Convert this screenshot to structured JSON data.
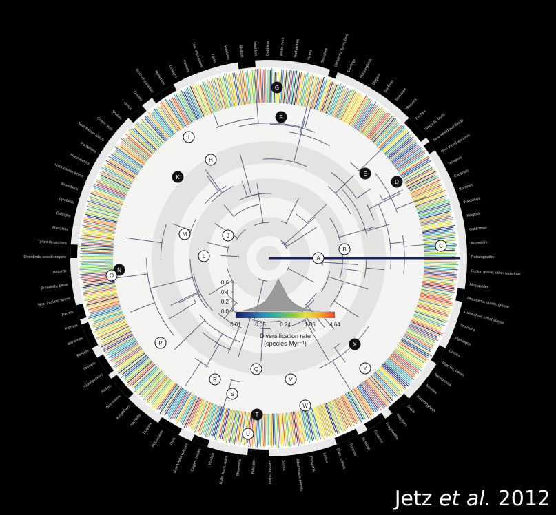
{
  "caption": {
    "author": "Jetz",
    "etal": "et al.",
    "year": "2012"
  },
  "inset": {
    "title_line1": "Diversification rate",
    "title_line2": "(species Myr⁻¹)",
    "yticks": [
      "0.6",
      "0.4",
      "0.2",
      "0.0"
    ],
    "xticks": [
      "0.01",
      "0.05",
      "0.24",
      "1.05",
      "4.64"
    ],
    "colormap": [
      "#1a1f63",
      "#2a4f9a",
      "#2f8fb6",
      "#3fb59a",
      "#8cc63f",
      "#e8e23a",
      "#f7a32a",
      "#e8412a"
    ]
  },
  "clade_markers": [
    {
      "letter": "A",
      "style": "light"
    },
    {
      "letter": "B",
      "style": "light"
    },
    {
      "letter": "C",
      "style": "light"
    },
    {
      "letter": "D",
      "style": "dark"
    },
    {
      "letter": "E",
      "style": "dark"
    },
    {
      "letter": "F",
      "style": "dark"
    },
    {
      "letter": "G",
      "style": "dark"
    },
    {
      "letter": "H",
      "style": "light"
    },
    {
      "letter": "I",
      "style": "light"
    },
    {
      "letter": "J",
      "style": "light"
    },
    {
      "letter": "K",
      "style": "dark"
    },
    {
      "letter": "L",
      "style": "light"
    },
    {
      "letter": "M",
      "style": "light"
    },
    {
      "letter": "N",
      "style": "dark"
    },
    {
      "letter": "O",
      "style": "light"
    },
    {
      "letter": "P",
      "style": "light"
    },
    {
      "letter": "Q",
      "style": "light"
    },
    {
      "letter": "R",
      "style": "light"
    },
    {
      "letter": "S",
      "style": "light"
    },
    {
      "letter": "T",
      "style": "dark"
    },
    {
      "letter": "U",
      "style": "light"
    },
    {
      "letter": "V",
      "style": "light"
    },
    {
      "letter": "W",
      "style": "light"
    },
    {
      "letter": "X",
      "style": "dark"
    },
    {
      "letter": "Y",
      "style": "light"
    }
  ],
  "clade_labels": [
    "Palaeognaths",
    "Ducks, geese, other waterfowl",
    "Megapodes",
    "Pheasants, quails, grouse",
    "Guineafowl, chachalacas",
    "Tinamous",
    "Flamingos",
    "Grebes",
    "Pigeons, doves",
    "Sandgrouse",
    "Mesites",
    "Hummingbirds",
    "Swifts",
    "Nightjars",
    "Frogmouths",
    "Cuckoos",
    "Bustards",
    "Turacos",
    "Rails, cranes",
    "Loons",
    "Penguins",
    "Albatrosses, petrels",
    "Storks",
    "Herons, ibises",
    "Pelicans",
    "Shorebirds",
    "Gulls, terns, auks",
    "Hoatzin",
    "Eagles, hawks",
    "New World vultures",
    "Owls",
    "Mousebirds",
    "Trogons",
    "Hornbills",
    "Kingfishers",
    "Bee-eaters",
    "Rollers",
    "Woodpeckers",
    "Toucans",
    "Barbets",
    "Seriemas",
    "Falcons",
    "Parrots",
    "New Zealand wrens",
    "Broadbills, pittas",
    "Antbirds",
    "Ovenbirds, woodcreepers",
    "Tyrant flycatchers",
    "Manakins",
    "Cotingas",
    "Lyrebirds",
    "Bowerbirds",
    "Australasian wrens",
    "Honeyeaters",
    "Pardalotes",
    "Australasian robins",
    "Crows, jays",
    "Shrikes",
    "Vireos",
    "Orioles",
    "Birds-of-paradise",
    "Monarchs",
    "Drongos",
    "Fantails",
    "Tits, chickadees",
    "Larks",
    "Swallows",
    "Bulbuls",
    "Warblers",
    "Babblers",
    "White-eyes",
    "Nuthatches",
    "Wrens",
    "Thrushes",
    "Old World flycatchers",
    "Starlings",
    "Mockingbirds",
    "Dippers",
    "Sunbirds",
    "Sparrows",
    "Weavers",
    "Finches",
    "Wagtails, pipits",
    "New World blackbirds",
    "New World warblers",
    "Tanagers",
    "Cardinals",
    "Buntings",
    "Waxwings",
    "Kinglets",
    "Goldcrests",
    "Accentors"
  ]
}
